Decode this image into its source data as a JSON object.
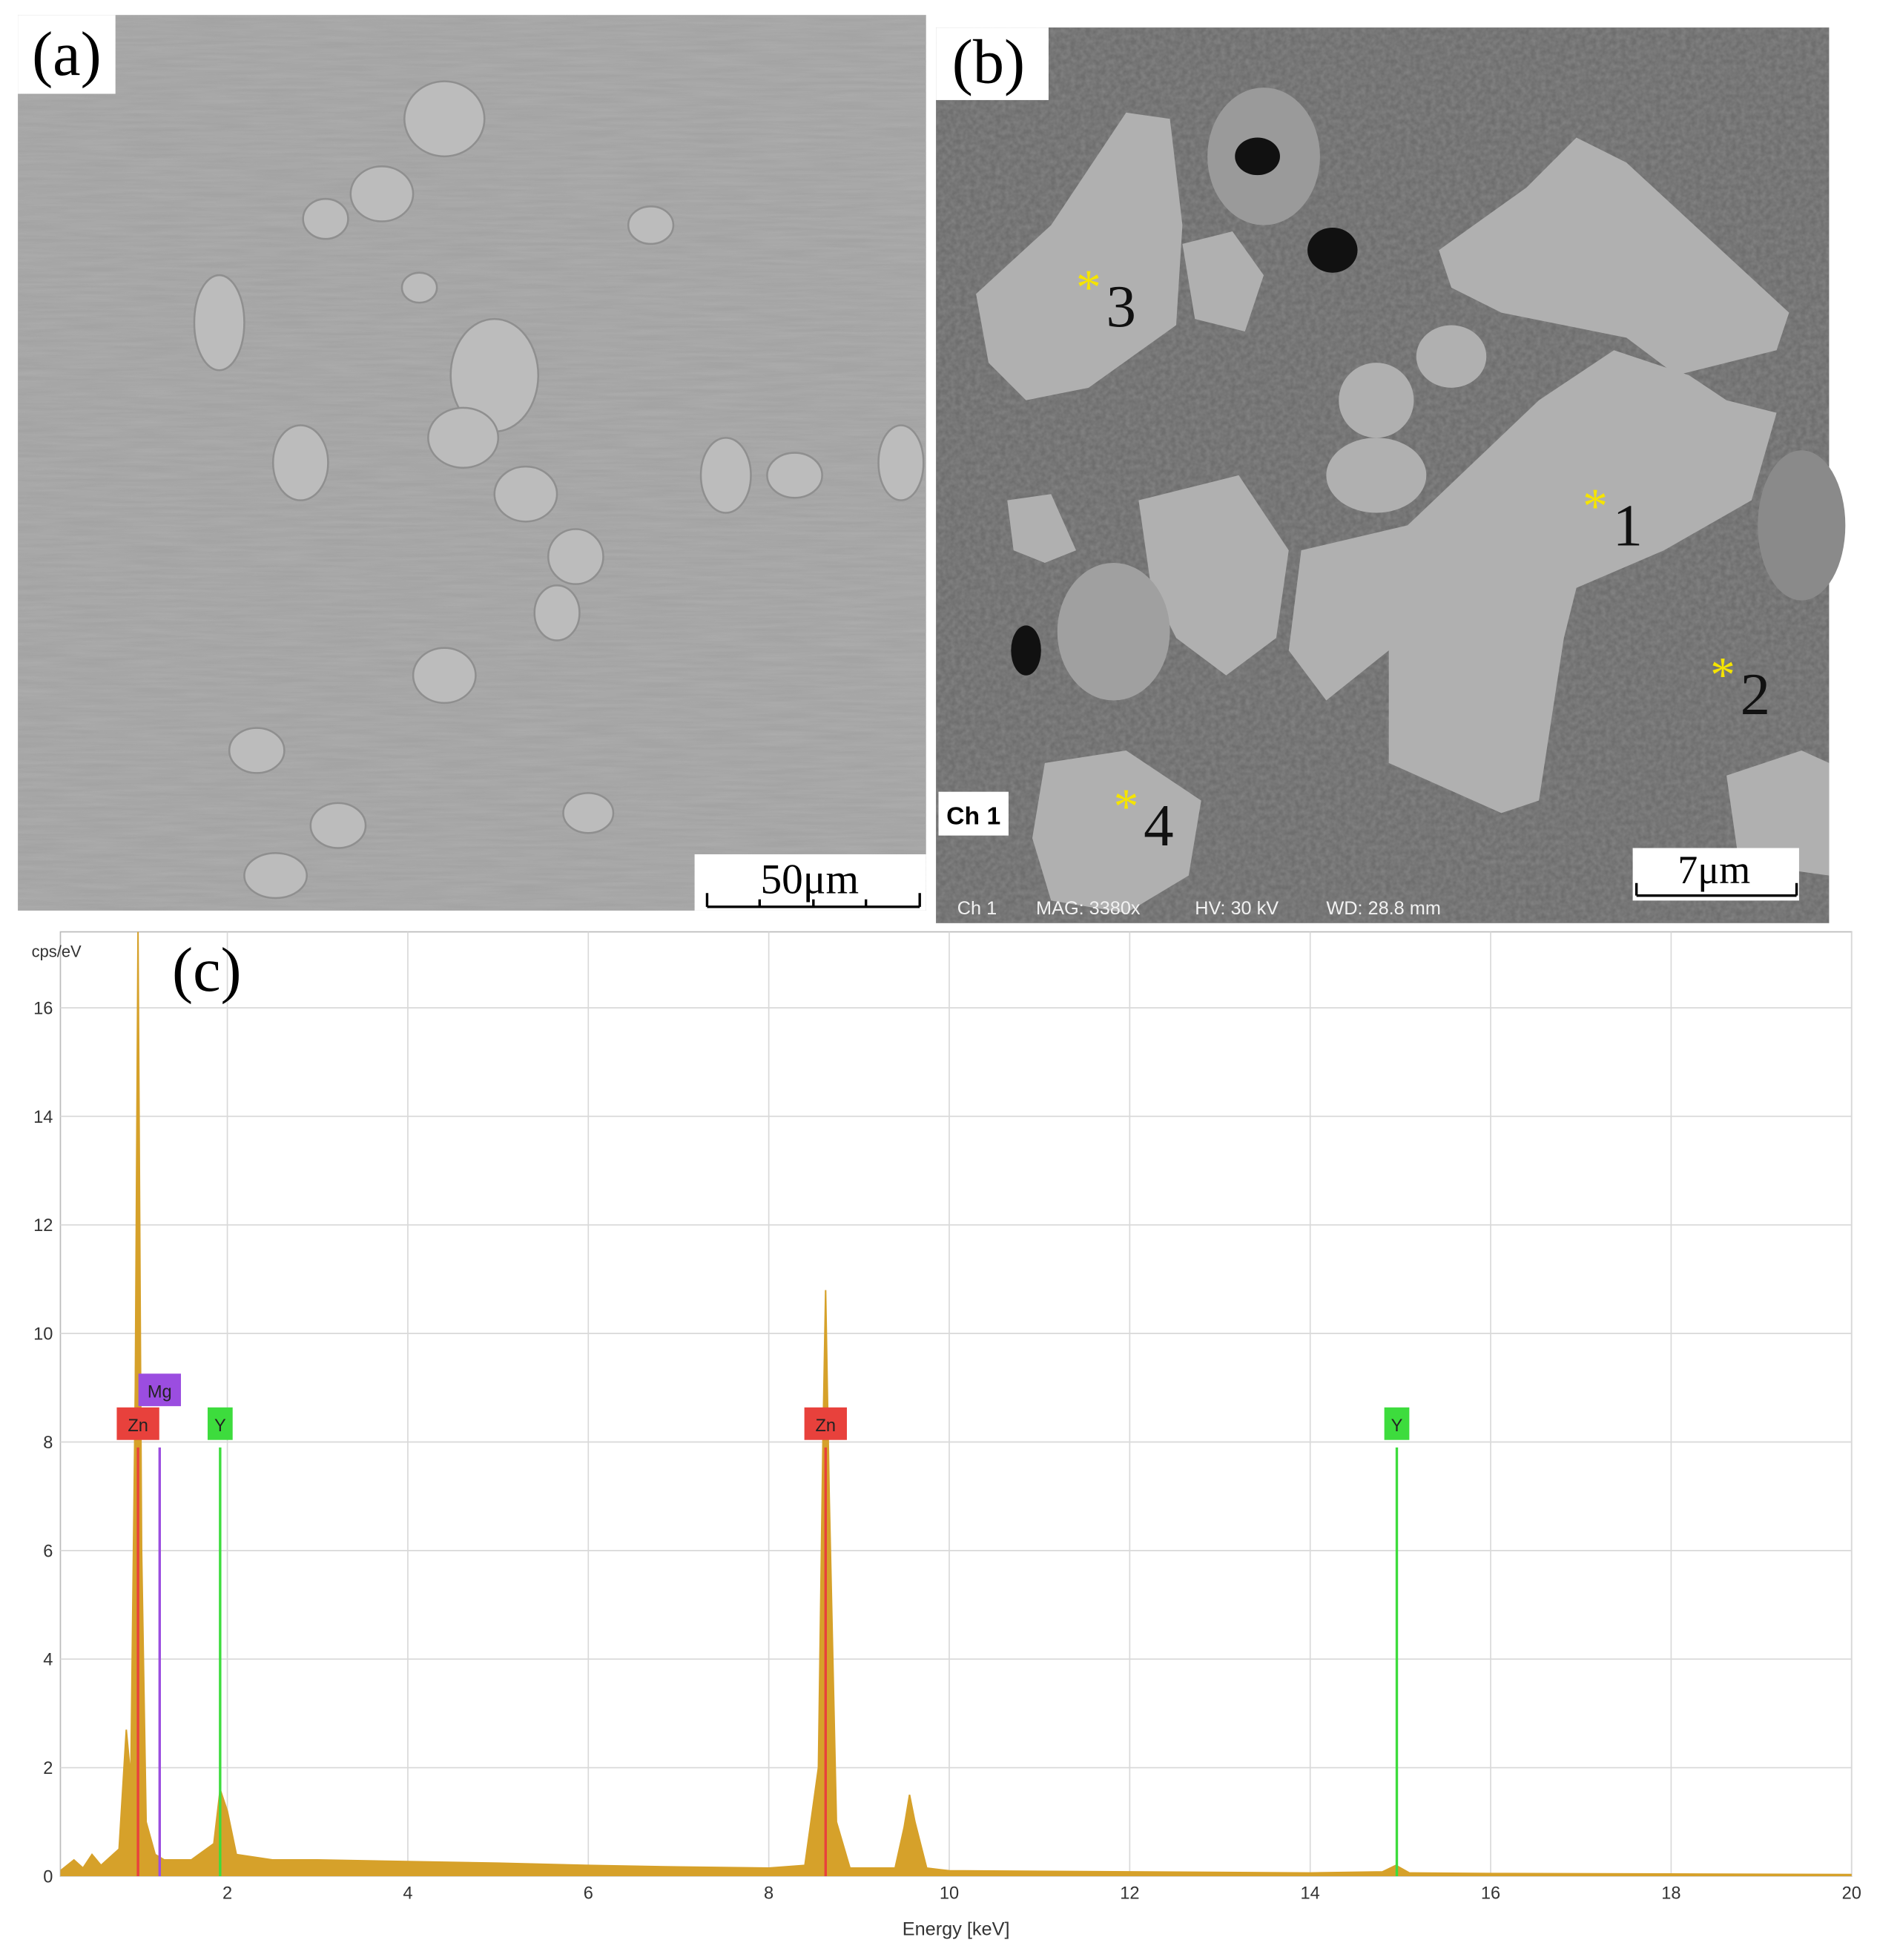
{
  "panels": [
    {
      "label": "(a)",
      "scale_bar": "50μm"
    },
    {
      "label": "(b)",
      "scale_bar": "7μm",
      "channel": "Ch 1",
      "info": [
        "Ch 1",
        "MAG: 3380x",
        "HV: 30 kV",
        "WD: 28.8 mm"
      ],
      "points": [
        "1",
        "2",
        "3",
        "4"
      ],
      "point_symbol": "*"
    }
  ],
  "chart_data": {
    "type": "area",
    "title": "(c)",
    "y_label": "cps/eV",
    "x_label": "Energy [keV]",
    "xlim": [
      0.15,
      20
    ],
    "ylim": [
      0,
      17.4
    ],
    "xticks": [
      2,
      4,
      6,
      8,
      10,
      12,
      14,
      16,
      18,
      20
    ],
    "yticks": [
      0,
      2,
      4,
      6,
      8,
      10,
      12,
      14,
      16
    ],
    "grid": true,
    "x": [
      0.15,
      0.3,
      0.4,
      0.5,
      0.6,
      0.8,
      0.88,
      0.93,
      0.98,
      1.01,
      1.05,
      1.1,
      1.2,
      1.3,
      1.6,
      1.85,
      1.92,
      2.0,
      2.1,
      2.5,
      3,
      4,
      5,
      6,
      7,
      8,
      8.4,
      8.55,
      8.6,
      8.63,
      8.67,
      8.75,
      8.9,
      9.4,
      9.5,
      9.56,
      9.62,
      9.75,
      10,
      12,
      14,
      14.8,
      14.95,
      15.1,
      16,
      18,
      20
    ],
    "series": [
      {
        "color": "#d6a12a",
        "values": [
          0.1,
          0.3,
          0.15,
          0.4,
          0.2,
          0.5,
          2.7,
          1.8,
          9,
          17.4,
          6,
          1.0,
          0.4,
          0.3,
          0.3,
          0.6,
          1.6,
          1.2,
          0.4,
          0.3,
          0.3,
          0.27,
          0.24,
          0.2,
          0.17,
          0.15,
          0.2,
          2,
          8,
          10.8,
          7,
          1,
          0.15,
          0.15,
          0.9,
          1.5,
          1.0,
          0.15,
          0.1,
          0.08,
          0.06,
          0.08,
          0.2,
          0.06,
          0.05,
          0.04,
          0.03
        ]
      }
    ],
    "markers": [
      {
        "label": "Zn",
        "x": 1.01,
        "height": 7.9,
        "color": "#e8413c"
      },
      {
        "label": "Mg",
        "x": 1.25,
        "height": 7.9,
        "color": "#9b4de0"
      },
      {
        "label": "Y",
        "x": 1.92,
        "height": 7.9,
        "color": "#3ddc3d"
      },
      {
        "label": "Zn",
        "x": 8.63,
        "height": 7.9,
        "color": "#e8413c"
      },
      {
        "label": "Y",
        "x": 14.96,
        "height": 7.9,
        "color": "#3ddc3d"
      }
    ]
  }
}
